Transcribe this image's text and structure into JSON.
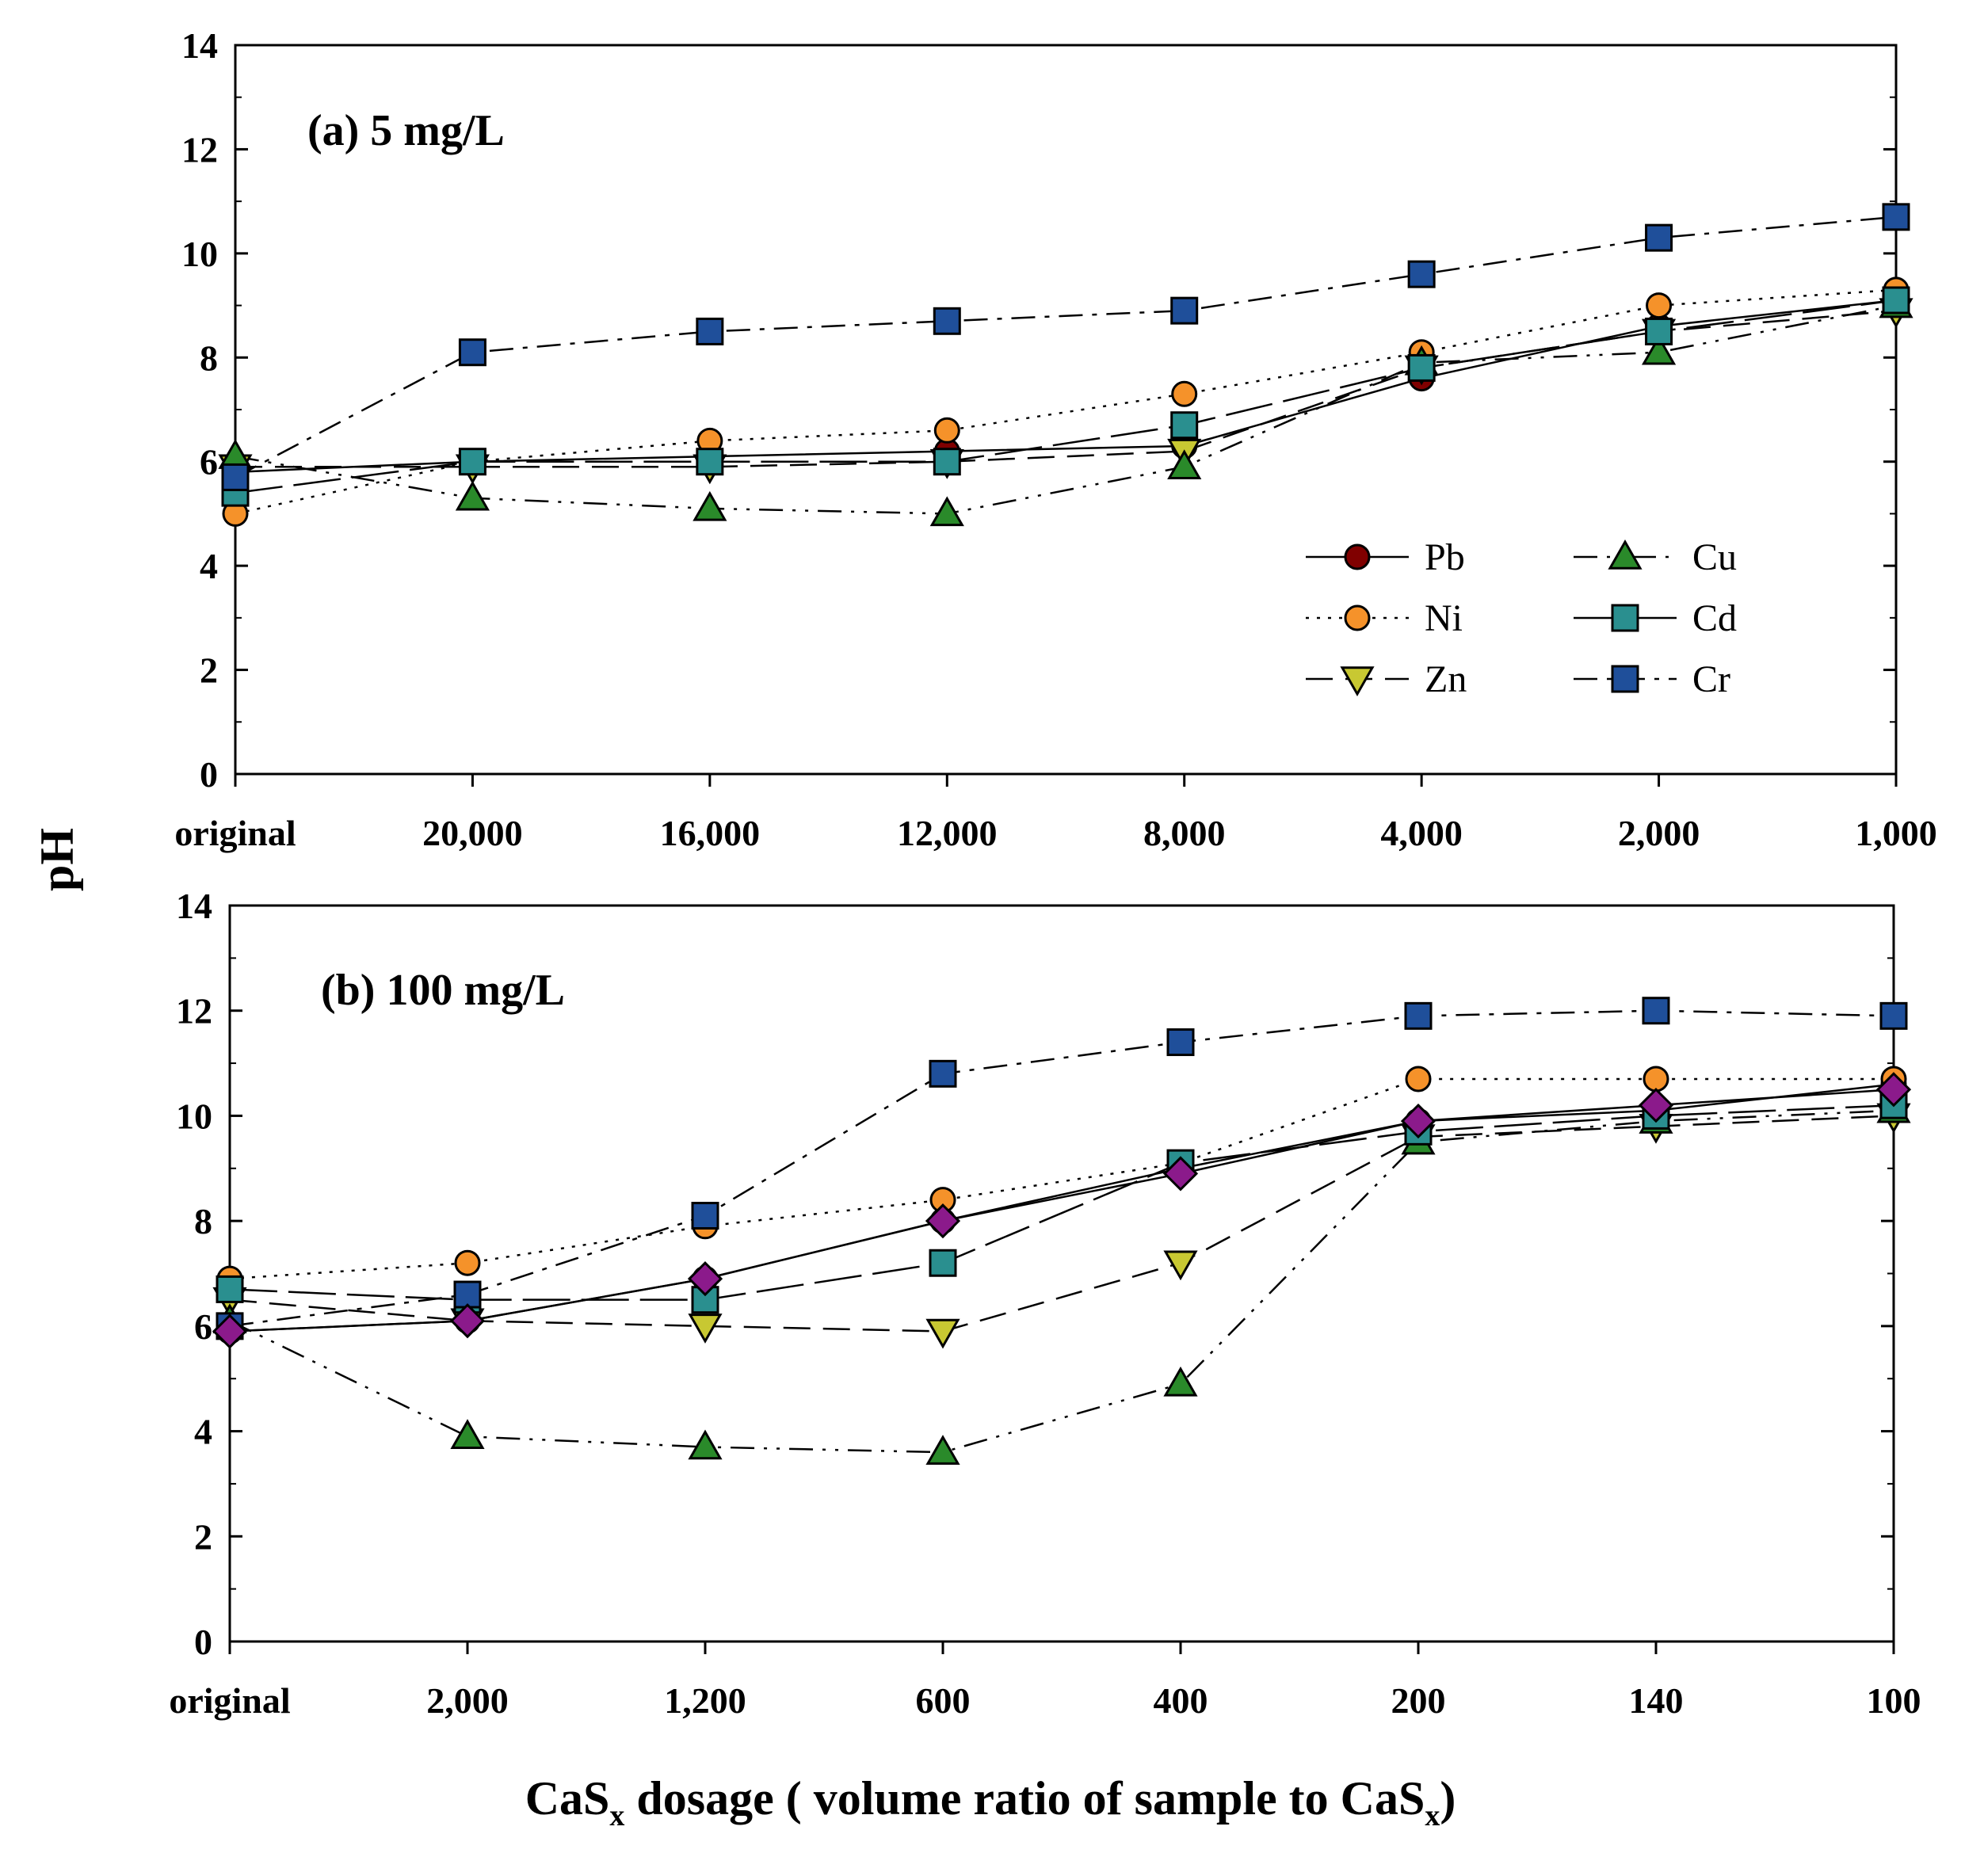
{
  "figure": {
    "ylabel": "pH",
    "xlabel": {
      "part1": "CaS",
      "sub1": "x",
      "part2": " dosage ( volume ratio of sample to CaS",
      "sub2": "x",
      "part3": ")"
    }
  },
  "series_styles": [
    {
      "name": "Pb",
      "marker": "circle",
      "color": "#800000",
      "dash": "solid"
    },
    {
      "name": "Ni",
      "marker": "circle",
      "color": "#f5922a",
      "dash": "dotted"
    },
    {
      "name": "Zn",
      "marker": "triangle-down",
      "color": "#c8c832",
      "dash": "dashed"
    },
    {
      "name": "Cu",
      "marker": "triangle-up",
      "color": "#2a8a2a",
      "dash": "dashdotdot"
    },
    {
      "name": "Cd",
      "marker": "square",
      "color": "#2a8f8f",
      "dash": "longdash"
    },
    {
      "name": "Cr",
      "marker": "square",
      "color": "#1f4f9a",
      "dash": "dashdot"
    },
    {
      "name": "",
      "marker": "diamond",
      "color": "#8b1a8b",
      "dash": "solid"
    }
  ],
  "chart_data": [
    {
      "type": "line",
      "title": "(a) 5 mg/L",
      "ylabel": "pH",
      "ylim": [
        0,
        14
      ],
      "yticks": [
        0,
        2,
        4,
        6,
        8,
        10,
        12,
        14
      ],
      "categories": [
        "original",
        "20,000",
        "16,000",
        "12,000",
        "8,000",
        "4,000",
        "2,000",
        "1,000"
      ],
      "legend": [
        "Pb",
        "Ni",
        "Zn",
        "Cu",
        "Cd",
        "Cr"
      ],
      "series": [
        {
          "name": "Pb",
          "values": [
            5.8,
            6.0,
            6.1,
            6.2,
            6.3,
            7.6,
            8.6,
            9.1
          ]
        },
        {
          "name": "Ni",
          "values": [
            5.0,
            6.0,
            6.4,
            6.6,
            7.3,
            8.1,
            9.0,
            9.3
          ]
        },
        {
          "name": "Zn",
          "values": [
            5.9,
            5.9,
            5.9,
            6.0,
            6.2,
            7.8,
            8.5,
            8.9
          ]
        },
        {
          "name": "Cu",
          "values": [
            6.1,
            5.3,
            5.1,
            5.0,
            5.9,
            7.9,
            8.1,
            9.0
          ]
        },
        {
          "name": "Cd",
          "values": [
            5.4,
            6.0,
            6.0,
            6.0,
            6.7,
            7.8,
            8.5,
            9.1
          ]
        },
        {
          "name": "Cr",
          "values": [
            5.7,
            8.1,
            8.5,
            8.7,
            8.9,
            9.6,
            10.3,
            10.7
          ]
        }
      ]
    },
    {
      "type": "line",
      "title": "(b) 100 mg/L",
      "ylabel": "pH",
      "ylim": [
        0,
        14
      ],
      "yticks": [
        0,
        2,
        4,
        6,
        8,
        10,
        12,
        14
      ],
      "categories": [
        "original",
        "2,000",
        "1,200",
        "600",
        "400",
        "200",
        "140",
        "100"
      ],
      "series": [
        {
          "name": "Pb",
          "values": [
            5.9,
            6.1,
            6.9,
            8.0,
            9.0,
            9.9,
            10.1,
            10.6
          ]
        },
        {
          "name": "Ni",
          "values": [
            6.9,
            7.2,
            7.9,
            8.4,
            9.1,
            10.7,
            10.7,
            10.7
          ]
        },
        {
          "name": "Zn",
          "values": [
            6.5,
            6.1,
            6.0,
            5.9,
            7.2,
            9.6,
            9.8,
            10.0
          ]
        },
        {
          "name": "Cu",
          "values": [
            6.1,
            3.9,
            3.7,
            3.6,
            4.9,
            9.5,
            9.9,
            10.1
          ]
        },
        {
          "name": "Cd",
          "values": [
            6.7,
            6.5,
            6.5,
            7.2,
            9.1,
            9.7,
            10.0,
            10.2
          ]
        },
        {
          "name": "Cr",
          "values": [
            6.0,
            6.6,
            8.1,
            10.8,
            11.4,
            11.9,
            12.0,
            11.9
          ]
        },
        {
          "name": "",
          "values": [
            5.9,
            6.1,
            6.9,
            8.0,
            8.9,
            9.9,
            10.2,
            10.5
          ]
        }
      ]
    }
  ]
}
